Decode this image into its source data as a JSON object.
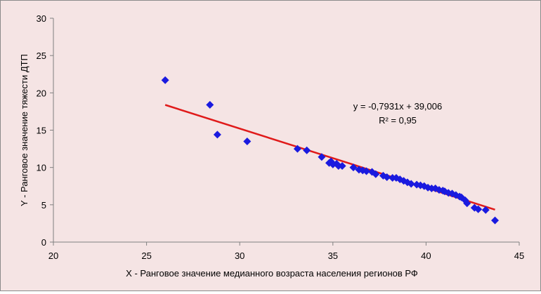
{
  "chart_data": {
    "type": "scatter",
    "xlabel": "X - Ранговое значение медианного возраста населения регионов РФ",
    "ylabel": "Y - Ранговое значение тяжести ДТП",
    "xlim": [
      20,
      45
    ],
    "ylim": [
      0,
      30
    ],
    "x_ticks": [
      "20",
      "25",
      "30",
      "35",
      "40",
      "45"
    ],
    "y_ticks": [
      "0",
      "5",
      "10",
      "15",
      "20",
      "25",
      "30"
    ],
    "grid": false,
    "colors": {
      "points": "#1a1adf",
      "trendline": "#e01a1a",
      "background": "#f5e4e4"
    },
    "points": [
      [
        26.0,
        21.7
      ],
      [
        28.4,
        18.4
      ],
      [
        28.8,
        14.4
      ],
      [
        30.4,
        13.5
      ],
      [
        33.1,
        12.5
      ],
      [
        33.6,
        12.3
      ],
      [
        34.4,
        11.4
      ],
      [
        34.8,
        10.6
      ],
      [
        34.9,
        10.8
      ],
      [
        35.0,
        10.4
      ],
      [
        35.2,
        10.5
      ],
      [
        35.3,
        10.2
      ],
      [
        35.5,
        10.2
      ],
      [
        36.1,
        10.0
      ],
      [
        36.4,
        9.7
      ],
      [
        36.6,
        9.6
      ],
      [
        36.8,
        9.5
      ],
      [
        37.1,
        9.4
      ],
      [
        37.3,
        9.1
      ],
      [
        37.7,
        8.9
      ],
      [
        37.9,
        8.7
      ],
      [
        38.2,
        8.6
      ],
      [
        38.4,
        8.6
      ],
      [
        38.6,
        8.4
      ],
      [
        38.8,
        8.2
      ],
      [
        39.0,
        8.0
      ],
      [
        39.2,
        7.8
      ],
      [
        39.5,
        7.7
      ],
      [
        39.7,
        7.6
      ],
      [
        39.9,
        7.5
      ],
      [
        40.1,
        7.3
      ],
      [
        40.3,
        7.2
      ],
      [
        40.5,
        7.2
      ],
      [
        40.7,
        7.0
      ],
      [
        40.9,
        6.9
      ],
      [
        41.0,
        6.8
      ],
      [
        41.2,
        6.6
      ],
      [
        41.4,
        6.5
      ],
      [
        41.6,
        6.3
      ],
      [
        41.8,
        6.1
      ],
      [
        41.9,
        6.0
      ],
      [
        42.1,
        5.6
      ],
      [
        42.2,
        5.2
      ],
      [
        42.6,
        4.6
      ],
      [
        42.8,
        4.4
      ],
      [
        43.2,
        4.3
      ],
      [
        43.7,
        2.9
      ]
    ],
    "trendline": {
      "slope": -0.7931,
      "intercept": 39.006,
      "x_range": [
        26.0,
        43.7
      ]
    },
    "annotations": {
      "equation": "y = -0,7931x + 39,006",
      "r_squared": "R² = 0,95"
    }
  }
}
